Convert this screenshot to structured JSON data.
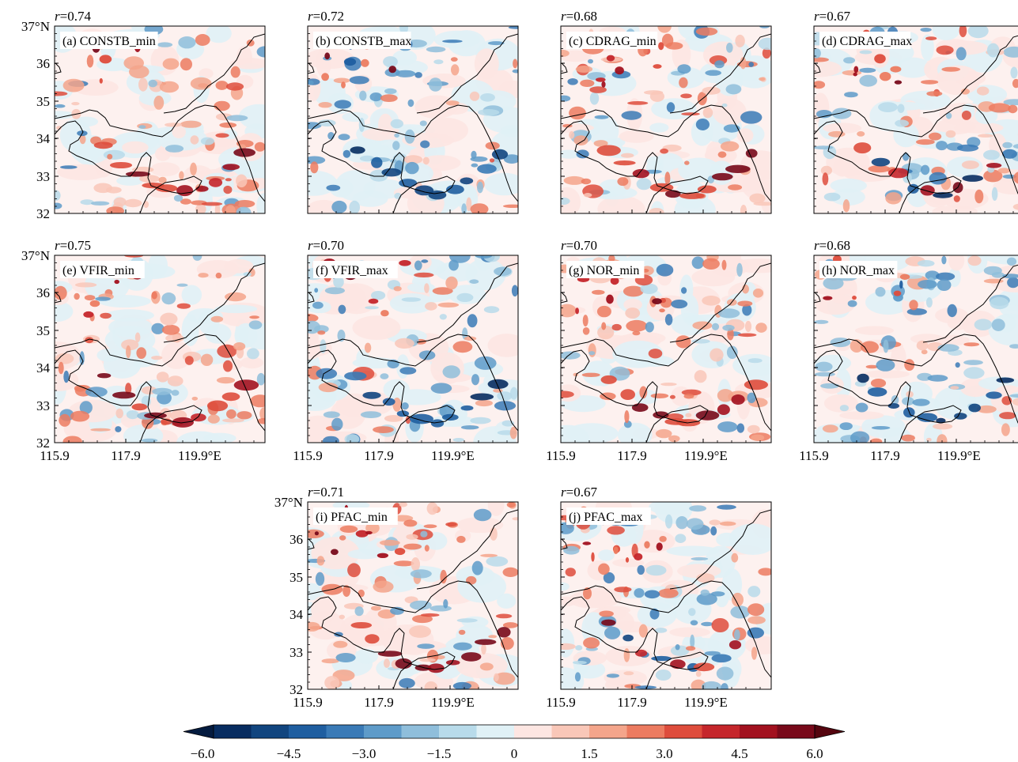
{
  "panels": [
    {
      "id": "a",
      "label": "(a) CONSTB_min",
      "r": "0.74",
      "mode": "red",
      "seed": 11
    },
    {
      "id": "b",
      "label": "(b) CONSTB_max",
      "r": "0.72",
      "mode": "blue",
      "seed": 23
    },
    {
      "id": "c",
      "label": "(c) CDRAG_min",
      "r": "0.68",
      "mode": "red",
      "seed": 37
    },
    {
      "id": "d",
      "label": "(d) CDRAG_max",
      "r": "0.67",
      "mode": "mixed",
      "seed": 41
    },
    {
      "id": "e",
      "label": "(e) VFIR_min",
      "r": "0.75",
      "mode": "red",
      "seed": 53
    },
    {
      "id": "f",
      "label": "(f) VFIR_max",
      "r": "0.70",
      "mode": "blue",
      "seed": 67
    },
    {
      "id": "g",
      "label": "(g) NOR_min",
      "r": "0.70",
      "mode": "red",
      "seed": 71
    },
    {
      "id": "h",
      "label": "(h) NOR_max",
      "r": "0.68",
      "mode": "blue",
      "seed": 83
    },
    {
      "id": "i",
      "label": "(i) PFAC_min",
      "r": "0.71",
      "mode": "red",
      "seed": 97
    },
    {
      "id": "j",
      "label": "(j) PFAC_max",
      "r": "0.67",
      "mode": "mixed",
      "seed": 101
    }
  ],
  "r_prefix": "r",
  "r_eq": "=",
  "lat_labels": [
    "37°N",
    "36",
    "35",
    "34",
    "33",
    "32"
  ],
  "lon_labels": [
    "115.9",
    "117.9",
    "119.9°E"
  ],
  "colorbar": {
    "tick_labels": [
      "−6.0",
      "−4.5",
      "−3.0",
      "−1.5",
      "0",
      "1.5",
      "3.0",
      "4.5",
      "6.0"
    ],
    "colors": [
      "#072c60",
      "#11457f",
      "#1f5ea0",
      "#3a7ab6",
      "#5e9bc9",
      "#8fbedb",
      "#b8dbea",
      "#e0f1f6",
      "#fde6e2",
      "#f9c7b8",
      "#f4a58b",
      "#ec7b60",
      "#de4c3c",
      "#c5262b",
      "#a2111f",
      "#78091a"
    ]
  }
}
